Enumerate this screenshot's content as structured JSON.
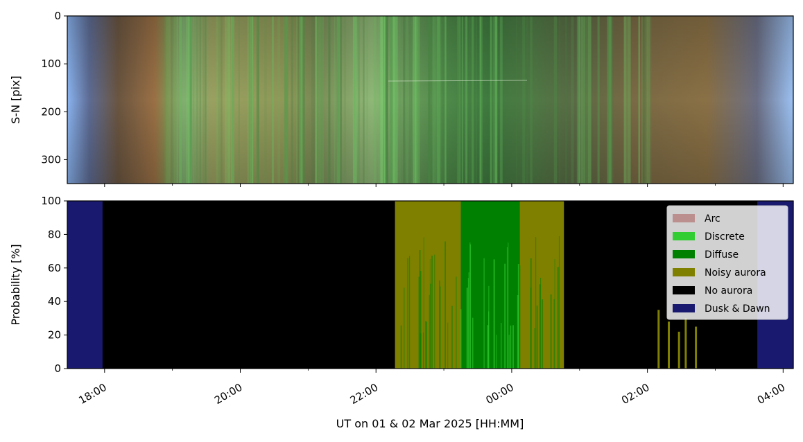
{
  "chart_data": [
    {
      "type": "heatmap",
      "title": "",
      "xlabel": "",
      "ylabel": "S-N [pix]",
      "ylim": [
        350,
        0
      ],
      "yticks": [
        0,
        100,
        200,
        300
      ],
      "description_free": true
    },
    {
      "type": "area",
      "title": "",
      "xlabel": "UT on 01 & 02 Mar 2025 [HH:MM]",
      "ylabel": "Probability [%]",
      "ylim": [
        0,
        100
      ],
      "yticks": [
        0,
        20,
        40,
        60,
        80,
        100
      ],
      "xlim_hours": [
        17.45,
        28.15
      ],
      "xticks": [
        {
          "hour": 18,
          "label": "18:00"
        },
        {
          "hour": 20,
          "label": "20:00"
        },
        {
          "hour": 22,
          "label": "22:00"
        },
        {
          "hour": 24,
          "label": "00:00"
        },
        {
          "hour": 26,
          "label": "02:00"
        },
        {
          "hour": 28,
          "label": "04:00"
        }
      ],
      "legend_position": "top-right",
      "series": [
        {
          "name": "Arc",
          "color": "#bc8f8f"
        },
        {
          "name": "Discrete",
          "color": "#32cd32"
        },
        {
          "name": "Diffuse",
          "color": "#008000"
        },
        {
          "name": "Noisy aurora",
          "color": "#808000"
        },
        {
          "name": "No aurora",
          "color": "#000000"
        },
        {
          "name": "Dusk & Dawn",
          "color": "#191970"
        }
      ],
      "segments": [
        {
          "start_hour": 17.45,
          "end_hour": 17.97,
          "class": "Dusk & Dawn"
        },
        {
          "start_hour": 17.97,
          "end_hour": 22.28,
          "class": "No aurora"
        },
        {
          "start_hour": 22.28,
          "end_hour": 22.95,
          "class": "Noisy aurora"
        },
        {
          "start_hour": 22.95,
          "end_hour": 23.25,
          "class": "Noisy aurora"
        },
        {
          "start_hour": 23.25,
          "end_hour": 24.12,
          "class": "Diffuse"
        },
        {
          "start_hour": 24.12,
          "end_hour": 24.77,
          "class": "Noisy aurora"
        },
        {
          "start_hour": 24.77,
          "end_hour": 27.62,
          "class": "No aurora"
        },
        {
          "start_hour": 27.62,
          "end_hour": 28.15,
          "class": "Dusk & Dawn"
        }
      ]
    }
  ]
}
